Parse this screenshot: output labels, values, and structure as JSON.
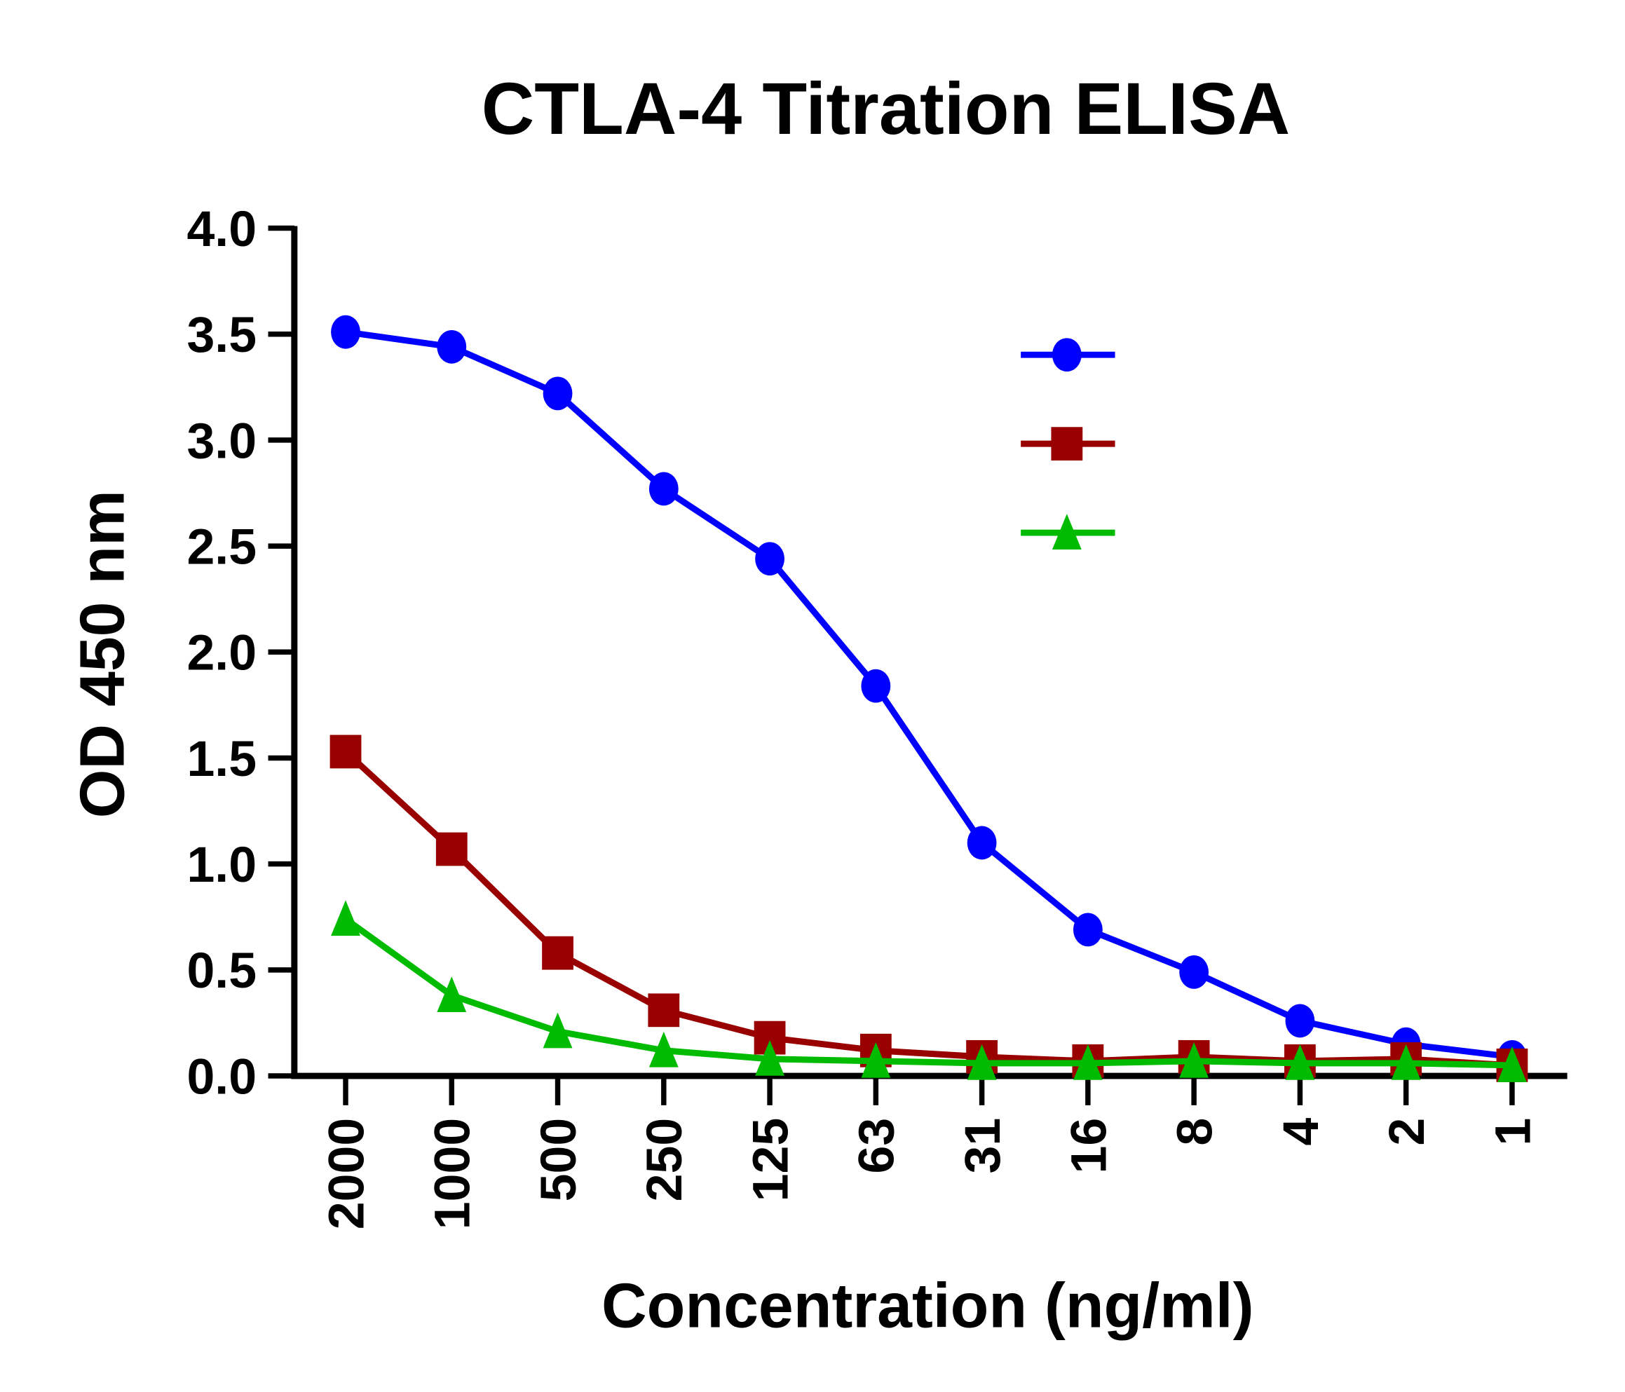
{
  "chart_data": {
    "type": "line",
    "title": "CTLA-4 Titration ELISA",
    "xlabel": "Concentration (ng/ml)",
    "ylabel": "OD 450 nm",
    "categories": [
      "2000",
      "1000",
      "500",
      "250",
      "125",
      "63",
      "31",
      "16",
      "8",
      "4",
      "2",
      "1"
    ],
    "ylim": [
      0,
      4.0
    ],
    "yticks": [
      "0.0",
      "0.5",
      "1.0",
      "1.5",
      "2.0",
      "2.5",
      "3.0",
      "3.5",
      "4.0"
    ],
    "grid": false,
    "legend_position": "top-right",
    "series": [
      {
        "marker": "circle",
        "color": "#0000ff",
        "values": [
          3.51,
          3.44,
          3.22,
          2.77,
          2.44,
          1.84,
          1.1,
          0.69,
          0.49,
          0.26,
          0.15,
          0.09
        ]
      },
      {
        "marker": "square",
        "color": "#990000",
        "values": [
          1.53,
          1.07,
          0.58,
          0.31,
          0.18,
          0.12,
          0.09,
          0.07,
          0.09,
          0.07,
          0.08,
          0.05
        ]
      },
      {
        "marker": "triangle",
        "color": "#00bb00",
        "values": [
          0.74,
          0.38,
          0.21,
          0.12,
          0.08,
          0.07,
          0.06,
          0.06,
          0.07,
          0.06,
          0.06,
          0.05
        ]
      }
    ]
  }
}
